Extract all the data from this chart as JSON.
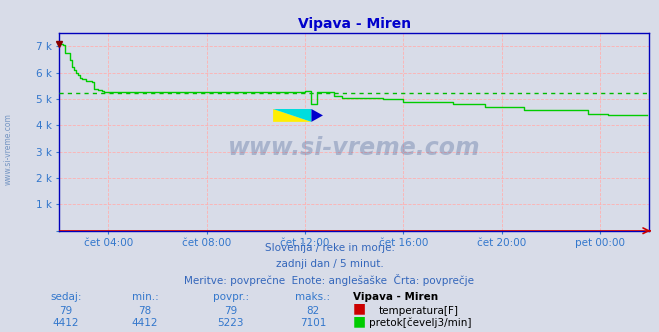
{
  "title": "Vipava - Miren",
  "title_color": "#0000cc",
  "bg_color": "#d8dce8",
  "plot_bg_color": "#d8dce8",
  "grid_color": "#ffb0b0",
  "axis_color": "#0000bb",
  "tick_color": "#3377cc",
  "xlim": [
    0,
    288
  ],
  "ylim": [
    0,
    7500
  ],
  "yticks": [
    0,
    1000,
    2000,
    3000,
    4000,
    5000,
    6000,
    7000
  ],
  "ytick_labels": [
    "",
    "1 k",
    "2 k",
    "3 k",
    "4 k",
    "5 k",
    "6 k",
    "7 k"
  ],
  "xticks": [
    24,
    72,
    120,
    168,
    216,
    264
  ],
  "xtick_labels": [
    "čet 04:00",
    "čet 08:00",
    "čet 12:00",
    "čet 16:00",
    "čet 20:00",
    "pet 00:00"
  ],
  "avg_flow": 5223,
  "flow_color": "#00cc00",
  "temp_color": "#cc0000",
  "avg_line_color": "#00bb00",
  "watermark": "www.si-vreme.com",
  "watermark_color": "#1a3a7a",
  "watermark_alpha": 0.25,
  "subtitle1": "Slovenija / reke in morje.",
  "subtitle2": "zadnji dan / 5 minut.",
  "subtitle3": "Meritve: povprečne  Enote: anglešaške  Črta: povprečje",
  "subtitle_color": "#3366bb",
  "legend_title": "Vipava - Miren",
  "legend_temp_label": "temperatura[F]",
  "legend_flow_label": "pretok[čevelj3/min]",
  "stats_sedaj_temp": 79,
  "stats_min_temp": 78,
  "stats_povpr_temp": 79,
  "stats_maks_temp": 82,
  "stats_sedaj_flow": 4412,
  "stats_min_flow": 4412,
  "stats_povpr_flow": 5223,
  "stats_maks_flow": 7101,
  "flow_data": [
    7101,
    7101,
    7050,
    6750,
    6750,
    6500,
    6200,
    6100,
    6000,
    5900,
    5800,
    5750,
    5750,
    5700,
    5700,
    5700,
    5650,
    5400,
    5400,
    5350,
    5350,
    5300,
    5280,
    5280,
    5280,
    5280,
    5280,
    5280,
    5280,
    5280,
    5280,
    5280,
    5280,
    5280,
    5280,
    5280,
    5280,
    5280,
    5280,
    5280,
    5280,
    5280,
    5280,
    5280,
    5280,
    5280,
    5280,
    5280,
    5280,
    5280,
    5280,
    5280,
    5280,
    5280,
    5280,
    5280,
    5280,
    5280,
    5280,
    5280,
    5280,
    5280,
    5280,
    5280,
    5280,
    5280,
    5280,
    5280,
    5280,
    5280,
    5280,
    5280,
    5280,
    5280,
    5280,
    5280,
    5280,
    5280,
    5280,
    5280,
    5280,
    5280,
    5280,
    5280,
    5280,
    5280,
    5280,
    5280,
    5280,
    5280,
    5280,
    5280,
    5280,
    5280,
    5280,
    5280,
    5280,
    5280,
    5280,
    5280,
    5280,
    5280,
    5280,
    5280,
    5280,
    5280,
    5280,
    5280,
    5280,
    5280,
    5280,
    5280,
    5280,
    5280,
    5280,
    5280,
    5280,
    5280,
    5280,
    5280,
    5320,
    5320,
    5320,
    4800,
    4800,
    4800,
    5280,
    5280,
    5280,
    5280,
    5280,
    5280,
    5280,
    5280,
    5100,
    5100,
    5100,
    5100,
    5050,
    5050,
    5050,
    5050,
    5050,
    5050,
    5050,
    5050,
    5050,
    5050,
    5050,
    5050,
    5050,
    5050,
    5050,
    5050,
    5050,
    5050,
    5050,
    5050,
    5000,
    5000,
    5000,
    5000,
    5000,
    5000,
    5000,
    5000,
    5000,
    5000,
    4900,
    4900,
    4900,
    4900,
    4900,
    4900,
    4900,
    4900,
    4900,
    4900,
    4900,
    4900,
    4900,
    4900,
    4900,
    4900,
    4900,
    4900,
    4900,
    4900,
    4900,
    4900,
    4900,
    4900,
    4800,
    4800,
    4800,
    4800,
    4800,
    4800,
    4800,
    4800,
    4800,
    4800,
    4800,
    4800,
    4800,
    4800,
    4800,
    4800,
    4700,
    4700,
    4700,
    4700,
    4700,
    4700,
    4700,
    4700,
    4700,
    4700,
    4700,
    4700,
    4700,
    4700,
    4700,
    4700,
    4700,
    4700,
    4700,
    4600,
    4600,
    4600,
    4600,
    4600,
    4600,
    4600,
    4600,
    4600,
    4600,
    4600,
    4600,
    4600,
    4600,
    4600,
    4600,
    4600,
    4600,
    4600,
    4600,
    4600,
    4600,
    4600,
    4600,
    4600,
    4600,
    4600,
    4600,
    4600,
    4600,
    4600,
    4450,
    4450,
    4450,
    4450,
    4450,
    4450,
    4450,
    4450,
    4450,
    4450,
    4412,
    4412,
    4412,
    4412,
    4412,
    4412,
    4412,
    4412,
    4412,
    4412,
    4412,
    4412,
    4412,
    4412,
    4412,
    4412,
    4412,
    4412,
    4412,
    4412
  ]
}
